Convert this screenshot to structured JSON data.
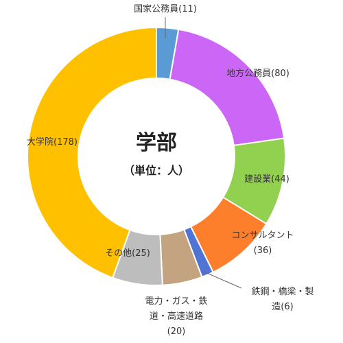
{
  "chart_data": {
    "type": "donut",
    "title": "学部",
    "subtitle": "（単位：人）",
    "categories": [
      "国家公務員",
      "地方公務員",
      "建設業",
      "コンサルタント",
      "鉄鋼・橋梁・製造",
      "電力・ガス・鉄道・高速道路",
      "その他",
      "大学院"
    ],
    "values": [
      11,
      80,
      44,
      36,
      6,
      20,
      25,
      178
    ],
    "value_labels": [
      "(11)",
      "(80)",
      "(44)",
      "(36)",
      "(6)",
      "(20)",
      "(25)",
      "(178)"
    ],
    "colors": [
      "#5b9bd5",
      "#cc66f7",
      "#92d050",
      "#fd7e2b",
      "#4f74d4",
      "#c4a381",
      "#bdbdbd",
      "#ffc000"
    ]
  }
}
